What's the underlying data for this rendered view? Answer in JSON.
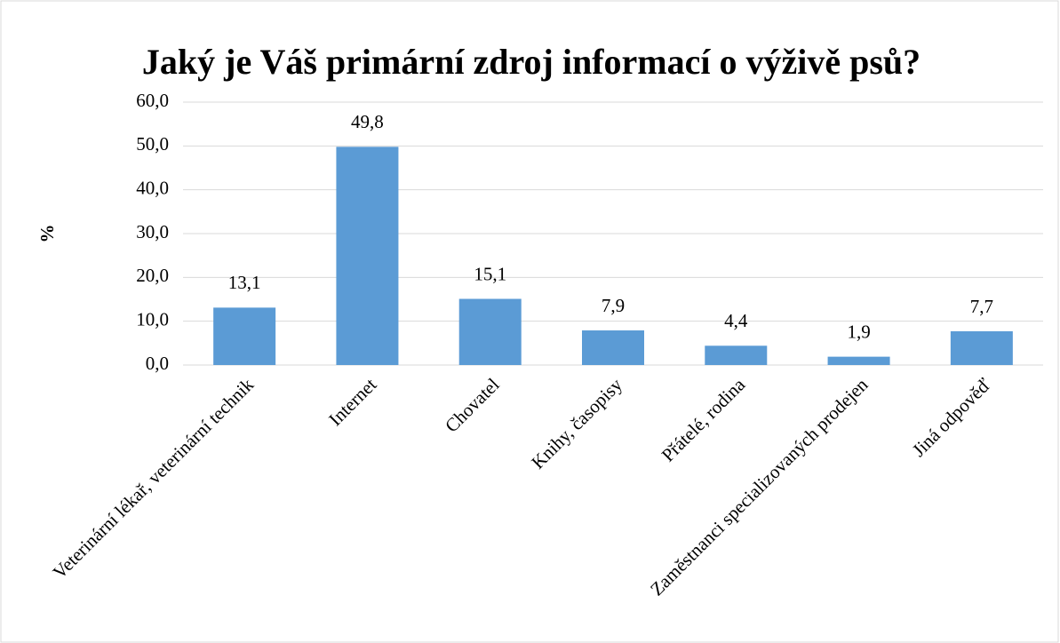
{
  "chart_data": {
    "type": "bar",
    "title": "Jaký je Váš primární zdroj informací o výživě psů?",
    "y_label": "%",
    "categories": [
      "Veterinární lékař, veterinární technik",
      "Internet",
      "Chovatel",
      "Knihy, časopisy",
      "Přátelé, rodina",
      "Zaměstnanci specializovaných prodejen",
      "Jiná odpověď"
    ],
    "values": [
      13.1,
      49.8,
      15.1,
      7.9,
      4.4,
      1.9,
      7.7
    ],
    "value_labels": [
      "13,1",
      "49,8",
      "15,1",
      "7,9",
      "4,4",
      "1,9",
      "7,7"
    ],
    "color": "#5b9bd5",
    "ylim": [
      0,
      60
    ],
    "yticks": [
      {
        "value": 0,
        "label": "0,0"
      },
      {
        "value": 10,
        "label": "10,0"
      },
      {
        "value": 20,
        "label": "20,0"
      },
      {
        "value": 30,
        "label": "30,0"
      },
      {
        "value": 40,
        "label": "40,0"
      },
      {
        "value": 50,
        "label": "50,0"
      },
      {
        "value": 60,
        "label": "60,0"
      }
    ],
    "grid": true
  }
}
